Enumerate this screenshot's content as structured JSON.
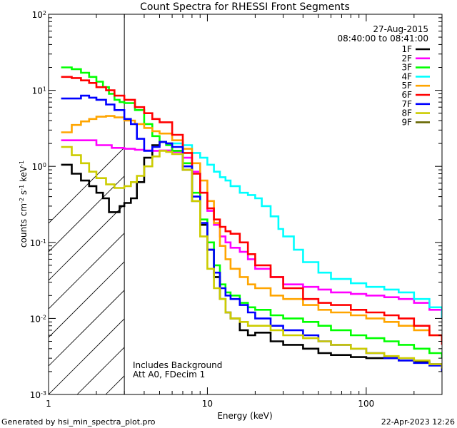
{
  "footer": {
    "generated_by": "Generated by hsi_min_spectra_plot.pro",
    "date": "22-Apr-2023 12:26"
  },
  "chart_data": {
    "type": "line",
    "title": "Count Spectra for RHESSI Front Segments",
    "xlabel": "Energy (keV)",
    "ylabel": "counts cm^-2 s^-1 keV^-1",
    "xscale": "log",
    "yscale": "log",
    "xlim": [
      1,
      300
    ],
    "ylim": [
      0.001,
      100
    ],
    "x_ticks": [
      {
        "value": 1,
        "label": "1"
      },
      {
        "value": 10,
        "label": "10"
      },
      {
        "value": 100,
        "label": "100"
      }
    ],
    "y_ticks": [
      {
        "value": 0.001,
        "label": "10",
        "exp": "-3"
      },
      {
        "value": 0.01,
        "label": "10",
        "exp": "-2"
      },
      {
        "value": 0.1,
        "label": "10",
        "exp": "-1"
      },
      {
        "value": 1,
        "label": "10",
        "exp": "0"
      },
      {
        "value": 10,
        "label": "10",
        "exp": "1"
      },
      {
        "value": 100,
        "label": "10",
        "exp": "2"
      }
    ],
    "date": "27-Aug-2015",
    "time_range": "08:40:00 to 08:41:00",
    "annotations": [
      "Includes Background",
      "Att A0, FDecim 1"
    ],
    "shaded_region": {
      "x_from": 1,
      "x_to": 3
    },
    "legend_position": "top-right",
    "series": [
      {
        "name": "1F",
        "color": "#000000",
        "x": [
          1.2,
          1.4,
          1.6,
          1.8,
          2.0,
          2.2,
          2.4,
          2.6,
          2.8,
          3.0,
          3.3,
          3.6,
          4.0,
          4.5,
          5.0,
          5.5,
          6.0,
          7.0,
          8.0,
          9.0,
          10,
          11,
          12,
          13,
          14,
          16,
          18,
          20,
          25,
          30,
          40,
          50,
          60,
          80,
          100,
          130,
          160,
          200,
          250,
          300
        ],
        "y": [
          1.05,
          0.8,
          0.65,
          0.55,
          0.45,
          0.38,
          0.25,
          0.25,
          0.3,
          0.33,
          0.38,
          0.62,
          1.3,
          1.9,
          2.1,
          2.0,
          1.6,
          0.9,
          0.35,
          0.17,
          0.08,
          0.035,
          0.018,
          0.012,
          0.01,
          0.007,
          0.006,
          0.0065,
          0.005,
          0.0045,
          0.004,
          0.0035,
          0.0033,
          0.0031,
          0.003,
          0.003,
          0.0028,
          0.0027,
          0.0025,
          0.0022
        ]
      },
      {
        "name": "2F",
        "color": "#ff00ff",
        "x": [
          1.2,
          1.5,
          2.0,
          2.5,
          3.0,
          3.5,
          4.0,
          4.5,
          5.0,
          6.0,
          7.0,
          8.0,
          9.0,
          10,
          11,
          12,
          13,
          14,
          16,
          18,
          20,
          25,
          30,
          40,
          50,
          60,
          80,
          100,
          130,
          160,
          200,
          250,
          300
        ],
        "y": [
          2.2,
          2.2,
          1.9,
          1.75,
          1.7,
          1.65,
          1.62,
          1.6,
          1.62,
          1.55,
          1.3,
          0.85,
          0.45,
          0.26,
          0.17,
          0.12,
          0.1,
          0.085,
          0.075,
          0.06,
          0.045,
          0.035,
          0.028,
          0.026,
          0.024,
          0.022,
          0.021,
          0.02,
          0.019,
          0.018,
          0.016,
          0.013,
          0.01
        ]
      },
      {
        "name": "3F",
        "color": "#00ff00",
        "x": [
          1.2,
          1.4,
          1.6,
          1.8,
          2.0,
          2.2,
          2.4,
          2.6,
          2.8,
          3.0,
          3.5,
          4.0,
          4.5,
          5.0,
          5.5,
          6.0,
          7.0,
          8.0,
          9.0,
          10,
          11,
          12,
          13,
          14,
          16,
          18,
          20,
          25,
          30,
          40,
          50,
          60,
          80,
          100,
          130,
          160,
          200,
          250,
          300
        ],
        "y": [
          20,
          19,
          17,
          15,
          13,
          11,
          9,
          7.5,
          7,
          6.8,
          5.5,
          3.6,
          2.5,
          2.1,
          1.9,
          1.6,
          1.1,
          0.45,
          0.2,
          0.1,
          0.05,
          0.028,
          0.022,
          0.02,
          0.016,
          0.014,
          0.013,
          0.011,
          0.01,
          0.009,
          0.008,
          0.007,
          0.006,
          0.0055,
          0.005,
          0.0045,
          0.004,
          0.0035,
          0.003
        ]
      },
      {
        "name": "4F",
        "color": "#00ffff",
        "x": [
          6,
          7,
          8,
          9,
          10,
          11,
          12,
          13,
          14,
          16,
          18,
          20,
          22,
          25,
          28,
          30,
          35,
          40,
          50,
          60,
          80,
          100,
          130,
          160,
          200,
          250,
          300
        ],
        "y": [
          2.0,
          1.9,
          1.5,
          1.3,
          1.05,
          0.85,
          0.72,
          0.65,
          0.55,
          0.45,
          0.42,
          0.38,
          0.3,
          0.22,
          0.15,
          0.12,
          0.08,
          0.055,
          0.04,
          0.033,
          0.029,
          0.026,
          0.024,
          0.022,
          0.018,
          0.014,
          0.01
        ]
      },
      {
        "name": "5F",
        "color": "#ffa500",
        "x": [
          1.2,
          1.4,
          1.6,
          1.8,
          2.0,
          2.3,
          2.6,
          3.0,
          3.5,
          4.0,
          4.5,
          5.0,
          6.0,
          7.0,
          8.0,
          9.0,
          10,
          11,
          12,
          13,
          14,
          16,
          18,
          20,
          25,
          30,
          40,
          50,
          60,
          80,
          100,
          130,
          160,
          200,
          250,
          300
        ],
        "y": [
          2.8,
          3.5,
          3.9,
          4.2,
          4.5,
          4.6,
          4.4,
          4.0,
          3.6,
          3.2,
          2.9,
          2.7,
          2.2,
          1.7,
          1.1,
          0.65,
          0.35,
          0.18,
          0.09,
          0.06,
          0.045,
          0.035,
          0.028,
          0.025,
          0.02,
          0.018,
          0.015,
          0.013,
          0.012,
          0.011,
          0.01,
          0.009,
          0.008,
          0.007,
          0.006,
          0.005
        ]
      },
      {
        "name": "6F",
        "color": "#ff0000",
        "x": [
          1.2,
          1.4,
          1.6,
          1.8,
          2.0,
          2.3,
          2.6,
          3.0,
          3.5,
          4.0,
          4.5,
          5.0,
          6.0,
          7.0,
          8.0,
          9.0,
          10,
          11,
          12,
          13,
          14,
          16,
          18,
          20,
          25,
          30,
          40,
          50,
          60,
          80,
          100,
          130,
          160,
          200,
          250,
          300
        ],
        "y": [
          15,
          14.5,
          13.5,
          12.5,
          11,
          10,
          8.5,
          7.5,
          6,
          5,
          4.2,
          3.8,
          2.6,
          1.5,
          0.8,
          0.45,
          0.28,
          0.2,
          0.16,
          0.14,
          0.13,
          0.1,
          0.07,
          0.05,
          0.035,
          0.025,
          0.018,
          0.016,
          0.015,
          0.013,
          0.012,
          0.011,
          0.01,
          0.008,
          0.006,
          0.0045
        ]
      },
      {
        "name": "7F",
        "color": "#0000ff",
        "x": [
          1.2,
          1.4,
          1.6,
          1.8,
          2.0,
          2.3,
          2.6,
          3.0,
          3.3,
          3.6,
          4.0,
          4.5,
          5.0,
          5.5,
          6.0,
          7.0,
          8.0,
          9.0,
          10,
          11,
          12,
          13,
          14,
          16,
          18,
          20,
          25,
          30,
          40,
          50,
          60,
          80,
          100,
          130,
          160,
          200,
          250,
          300
        ],
        "y": [
          7.8,
          7.8,
          8.5,
          8.0,
          7.5,
          6.5,
          5.5,
          4.2,
          3.6,
          2.3,
          1.6,
          1.8,
          2.1,
          2.0,
          1.8,
          1.0,
          0.4,
          0.18,
          0.08,
          0.04,
          0.025,
          0.02,
          0.018,
          0.015,
          0.012,
          0.01,
          0.008,
          0.007,
          0.006,
          0.005,
          0.0045,
          0.004,
          0.0035,
          0.003,
          0.0028,
          0.0026,
          0.0024,
          0.002
        ]
      },
      {
        "name": "8F",
        "color": "#cccc00",
        "x": [
          1.2,
          1.4,
          1.6,
          1.8,
          2.0,
          2.3,
          2.6,
          3.0,
          3.3,
          3.6,
          4.0,
          4.5,
          5.0,
          5.5,
          6.0,
          7.0,
          8.0,
          9.0,
          10,
          11,
          12,
          13,
          14,
          16,
          18,
          20,
          25,
          30,
          40,
          50,
          60,
          80,
          100,
          130,
          160,
          200,
          250,
          300
        ],
        "y": [
          1.8,
          1.4,
          1.1,
          0.85,
          0.7,
          0.58,
          0.52,
          0.55,
          0.62,
          0.75,
          1.0,
          1.35,
          1.6,
          1.55,
          1.45,
          0.9,
          0.35,
          0.12,
          0.045,
          0.025,
          0.018,
          0.012,
          0.01,
          0.009,
          0.008,
          0.008,
          0.007,
          0.006,
          0.0055,
          0.005,
          0.0045,
          0.004,
          0.0035,
          0.0032,
          0.003,
          0.0028,
          0.0025,
          0.0022
        ]
      },
      {
        "name": "9F",
        "color": "#666600",
        "x": [],
        "y": []
      }
    ]
  }
}
